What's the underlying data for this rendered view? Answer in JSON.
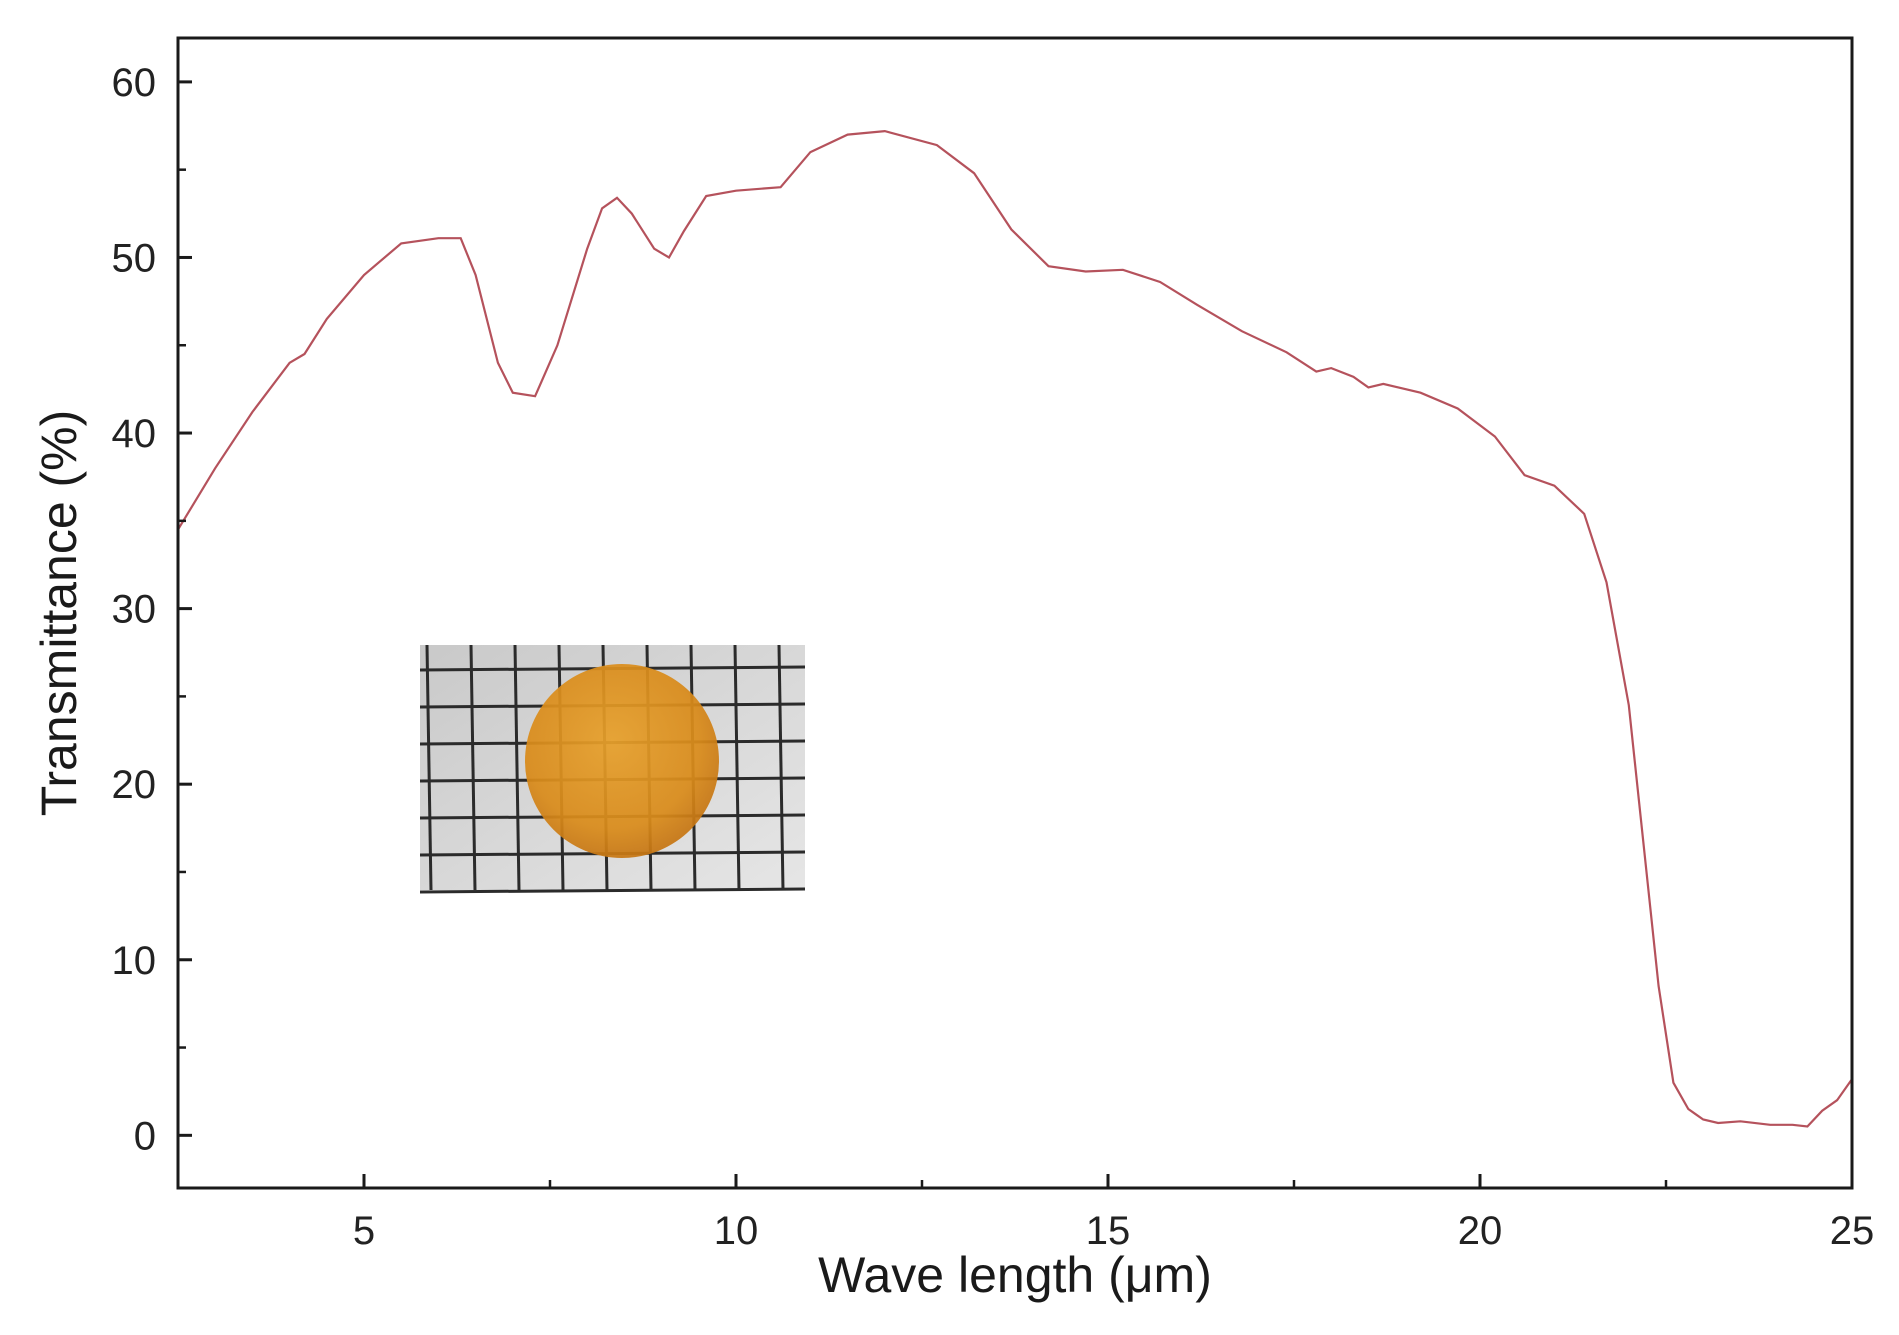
{
  "chart_data": {
    "type": "line",
    "title": "",
    "xlabel": "Wave length (μm)",
    "ylabel": "Transmittance (%)",
    "xlim": [
      2.5,
      25
    ],
    "ylim": [
      -3,
      62.5
    ],
    "x_ticks": [
      5,
      10,
      15,
      20,
      25
    ],
    "x_tick_labels": [
      "5",
      "10",
      "15",
      "20",
      "25"
    ],
    "y_ticks": [
      0,
      10,
      20,
      30,
      40,
      50,
      60
    ],
    "y_tick_labels": [
      "0",
      "10",
      "20",
      "30",
      "40",
      "50",
      "60"
    ],
    "grid": false,
    "legend": "none",
    "line_color": "#b5525c",
    "series": [
      {
        "x": [
          2.5,
          3.0,
          3.5,
          4.0,
          4.2,
          4.5,
          5.0,
          5.5,
          6.0,
          6.3,
          6.5,
          6.8,
          7.0,
          7.3,
          7.6,
          8.0,
          8.2,
          8.4,
          8.6,
          8.9,
          9.1,
          9.3,
          9.6,
          10.0,
          10.6,
          11.0,
          11.5,
          12.0,
          12.7,
          13.2,
          13.7,
          14.2,
          14.7,
          15.2,
          15.7,
          16.2,
          16.8,
          17.4,
          17.8,
          18.0,
          18.3,
          18.5,
          18.7,
          19.2,
          19.7,
          20.2,
          20.6,
          21.0,
          21.4,
          21.7,
          22.0,
          22.2,
          22.4,
          22.6,
          22.8,
          22.9,
          23.0,
          23.2,
          23.5,
          23.9,
          24.2,
          24.4,
          24.6,
          24.8,
          25.0
        ],
        "y": [
          34.5,
          38.0,
          41.2,
          44.0,
          44.5,
          46.5,
          49.0,
          50.8,
          51.1,
          51.1,
          49.0,
          44.0,
          42.3,
          42.1,
          45.0,
          50.5,
          52.8,
          53.4,
          52.5,
          50.5,
          50.0,
          51.5,
          53.5,
          53.8,
          54.0,
          56.0,
          57.0,
          57.2,
          56.4,
          54.8,
          51.6,
          49.5,
          49.2,
          49.3,
          48.6,
          47.3,
          45.8,
          44.6,
          43.5,
          43.7,
          43.2,
          42.6,
          42.8,
          42.3,
          41.4,
          39.8,
          37.6,
          37.0,
          35.4,
          31.5,
          24.5,
          16.5,
          8.5,
          3.0,
          1.5,
          1.2,
          0.9,
          0.7,
          0.8,
          0.6,
          0.6,
          0.5,
          1.4,
          2.0,
          3.2
        ]
      }
    ],
    "inset_image": "orange-disc-on-grid-paper-photo"
  }
}
